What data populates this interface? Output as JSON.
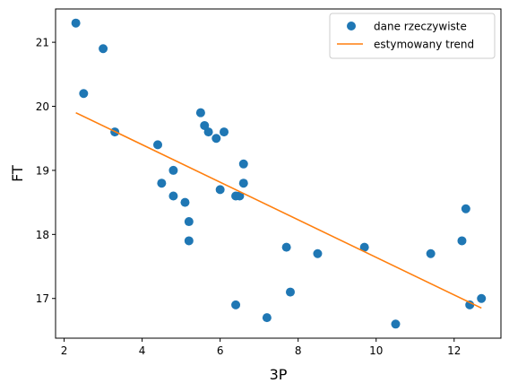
{
  "chart_data": {
    "type": "scatter",
    "xlabel": "3P",
    "ylabel": "FT",
    "xlim": [
      1.78,
      13.2
    ],
    "ylim": [
      16.38,
      21.52
    ],
    "xticks": [
      2,
      4,
      6,
      8,
      10,
      12
    ],
    "yticks": [
      17,
      18,
      19,
      20,
      21
    ],
    "grid": false,
    "legend_position": "top-right",
    "series": [
      {
        "name": "dane rzeczywiste",
        "kind": "scatter",
        "color": "#1f77b4",
        "points": [
          [
            2.3,
            21.3
          ],
          [
            3.0,
            20.9
          ],
          [
            2.5,
            20.2
          ],
          [
            3.3,
            19.6
          ],
          [
            4.4,
            19.4
          ],
          [
            4.8,
            19.0
          ],
          [
            4.5,
            18.8
          ],
          [
            4.8,
            18.6
          ],
          [
            5.1,
            18.5
          ],
          [
            5.2,
            18.2
          ],
          [
            5.2,
            17.9
          ],
          [
            5.5,
            19.9
          ],
          [
            5.6,
            19.7
          ],
          [
            5.7,
            19.6
          ],
          [
            5.9,
            19.5
          ],
          [
            6.1,
            19.6
          ],
          [
            6.0,
            18.7
          ],
          [
            6.4,
            18.6
          ],
          [
            6.5,
            18.6
          ],
          [
            6.6,
            19.1
          ],
          [
            6.6,
            18.8
          ],
          [
            6.4,
            16.9
          ],
          [
            7.2,
            16.7
          ],
          [
            7.7,
            17.8
          ],
          [
            7.8,
            17.1
          ],
          [
            8.5,
            17.7
          ],
          [
            9.7,
            17.8
          ],
          [
            10.5,
            16.6
          ],
          [
            11.4,
            17.7
          ],
          [
            12.2,
            17.9
          ],
          [
            12.3,
            18.4
          ],
          [
            12.4,
            16.9
          ],
          [
            12.7,
            17.0
          ]
        ]
      },
      {
        "name": "estymowany trend",
        "kind": "line",
        "color": "#ff7f0e",
        "points": [
          [
            2.3,
            19.9
          ],
          [
            12.7,
            16.85
          ]
        ]
      }
    ]
  }
}
